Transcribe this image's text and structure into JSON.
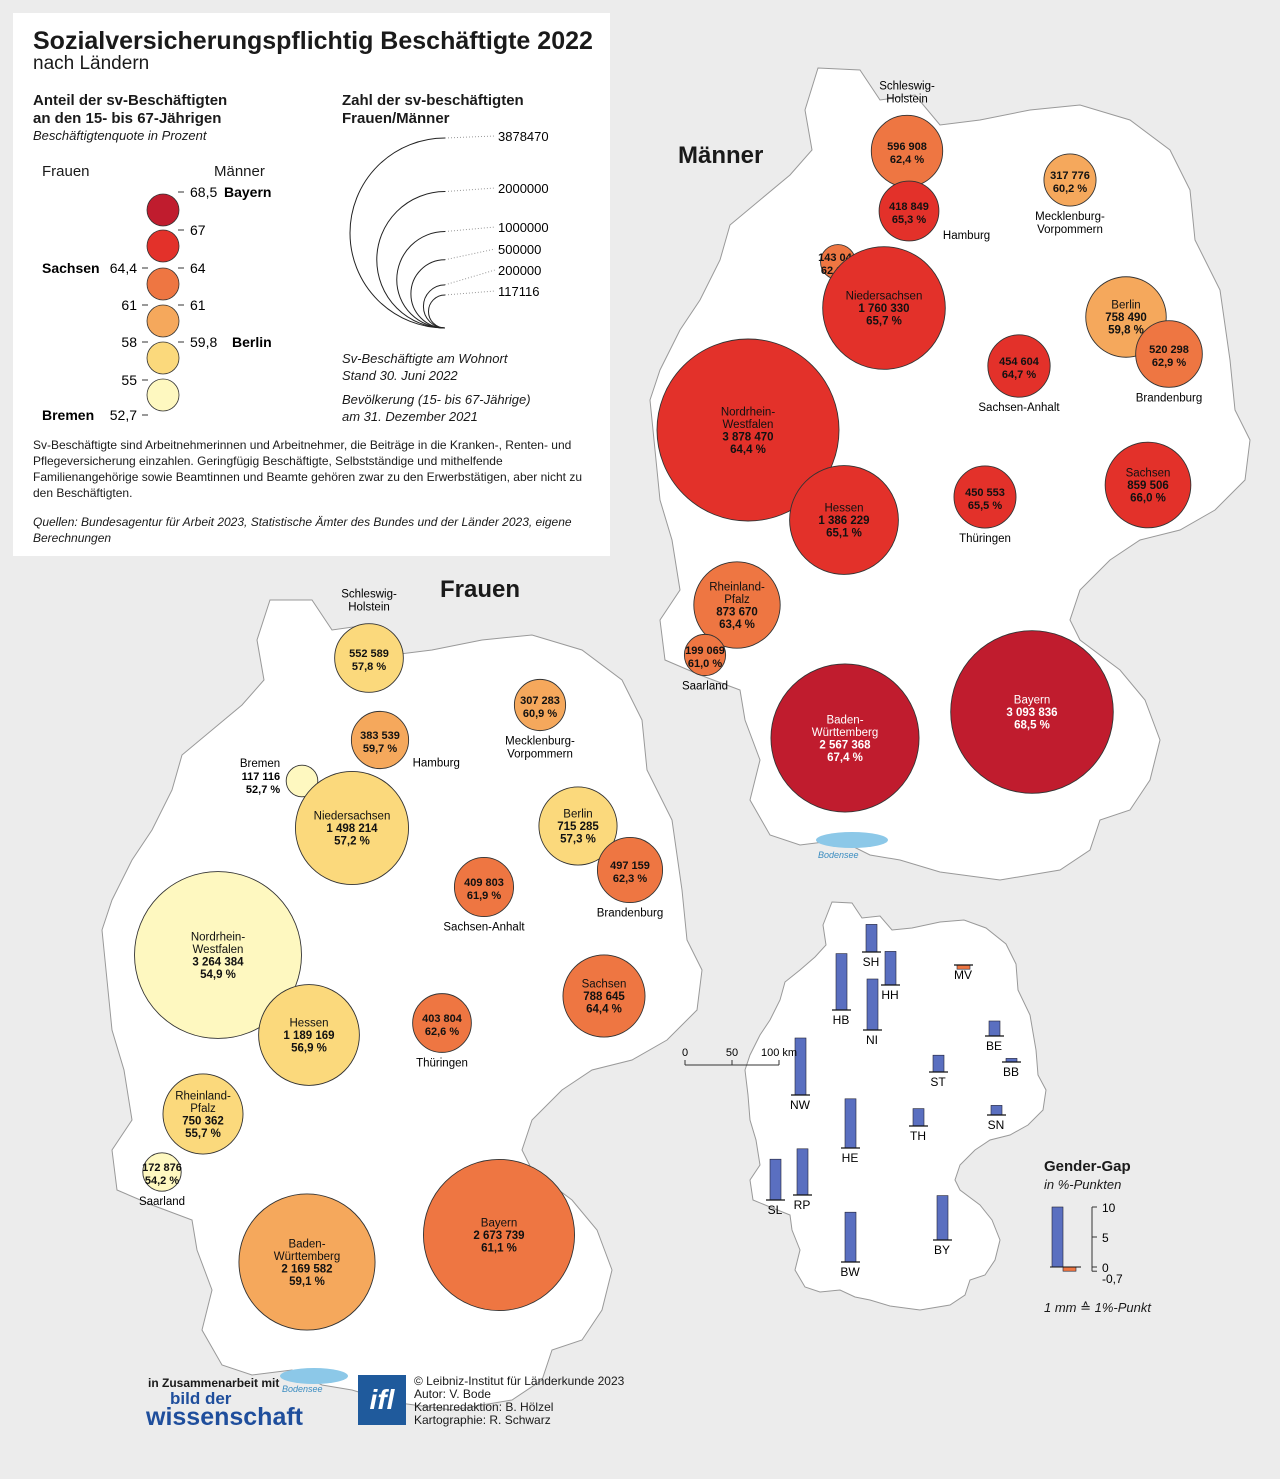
{
  "title": "Sozialversicherungspflichtig Beschäftigte 2022",
  "subtitle": "nach Ländern",
  "legend": {
    "share_title_1": "Anteil der sv-Beschäftigten",
    "share_title_2": "an den 15- bis 67-Jährigen",
    "share_subtitle": "Beschäftigtenquote in Prozent",
    "col_women": "Frauen",
    "col_men": "Männer",
    "classes": [
      {
        "color": "#c01c2e",
        "right": "68,5",
        "right_label": "Bayern",
        "left": "",
        "left_label": ""
      },
      {
        "color": "#e3312a",
        "right": "67",
        "right_label": "",
        "left": "",
        "left_label": ""
      },
      {
        "color": "#ee7642",
        "right": "64",
        "right_label": "",
        "left": "64,4",
        "left_label": "Sachsen"
      },
      {
        "color": "#f5a85c",
        "right": "61",
        "right_label": "",
        "left": "61",
        "left_label": ""
      },
      {
        "color": "#fbd97c",
        "right": "59,8",
        "right_label": "Berlin",
        "left": "58",
        "left_label": ""
      },
      {
        "color": "#fef8c0",
        "right": "",
        "right_label": "",
        "left": "55",
        "left_label": ""
      },
      {
        "color": "",
        "right": "",
        "right_label": "",
        "left": "52,7",
        "left_label": "Bremen"
      }
    ],
    "count_title_1": "Zahl der sv-beschäftigten",
    "count_title_2": "Frauen/Männer",
    "size_values": [
      "3878470",
      "2000000",
      "1000000",
      "500000",
      "200000",
      "117116"
    ],
    "size_numbers": [
      3878470,
      2000000,
      1000000,
      500000,
      200000,
      117116
    ],
    "note1_line1": "Sv-Beschäftigte am Wohnort",
    "note1_line2": "Stand 30. Juni 2022",
    "note2_line1": "Bevölkerung (15- bis 67-Jährige)",
    "note2_line2": "am 31. Dezember 2021",
    "explanation": "Sv-Beschäftigte sind Arbeitnehmerinnen und Arbeitnehmer, die Beiträge in die Kranken-, Renten- und Pflegeversicherung einzahlen. Geringfügig Beschäftigte, Selbstständige und mithelfende Familienangehörige sowie Beamtinnen und Beamte gehören zwar zu den Erwerbstätigen, aber nicht zu den Beschäftigten.",
    "sources": "Quellen: Bundesagentur für Arbeit 2023, Statistische Ämter des Bundes und der Länder 2023, eigene Berechnungen"
  },
  "maps": {
    "men_title": "Männer",
    "women_title": "Frauen",
    "lake": "Bodensee",
    "men": [
      {
        "name": [
          "Schleswig-",
          "Holstein"
        ],
        "value": "596 908",
        "pct": "62,4 %",
        "count": 596908,
        "color": "#ee7642"
      },
      {
        "name": [
          "Hamburg"
        ],
        "value": "418 849",
        "pct": "65,3 %",
        "count": 418849,
        "color": "#e3312a"
      },
      {
        "name": [
          "Mecklenburg-",
          "Vorpommern"
        ],
        "value": "317 776",
        "pct": "60,2 %",
        "count": 317776,
        "color": "#f5a85c"
      },
      {
        "name": [
          "Bremen"
        ],
        "value": "143 044",
        "pct": "62,1 %",
        "count": 143044,
        "color": "#ee7642"
      },
      {
        "name": [
          "Niedersachsen"
        ],
        "value": "1 760 330",
        "pct": "65,7 %",
        "count": 1760330,
        "color": "#e3312a"
      },
      {
        "name": [
          "Berlin"
        ],
        "value": "758 490",
        "pct": "59,8 %",
        "count": 758490,
        "color": "#f5a85c"
      },
      {
        "name": [
          "Brandenburg"
        ],
        "value": "520 298",
        "pct": "62,9 %",
        "count": 520298,
        "color": "#ee7642"
      },
      {
        "name": [
          "Sachsen-Anhalt"
        ],
        "value": "454 604",
        "pct": "64,7 %",
        "count": 454604,
        "color": "#e3312a"
      },
      {
        "name": [
          "Nordrhein-",
          "Westfalen"
        ],
        "value": "3 878 470",
        "pct": "64,4 %",
        "count": 3878470,
        "color": "#e3312a"
      },
      {
        "name": [
          "Hessen"
        ],
        "value": "1 386 229",
        "pct": "65,1 %",
        "count": 1386229,
        "color": "#e3312a"
      },
      {
        "name": [
          "Thüringen"
        ],
        "value": "450 553",
        "pct": "65,5 %",
        "count": 450553,
        "color": "#e3312a"
      },
      {
        "name": [
          "Sachsen"
        ],
        "value": "859 506",
        "pct": "66,0 %",
        "count": 859506,
        "color": "#e3312a"
      },
      {
        "name": [
          "Rheinland-",
          "Pfalz"
        ],
        "value": "873 670",
        "pct": "63,4 %",
        "count": 873670,
        "color": "#ee7642"
      },
      {
        "name": [
          "Saarland"
        ],
        "value": "199 069",
        "pct": "61,0 %",
        "count": 199069,
        "color": "#ee7642"
      },
      {
        "name": [
          "Baden-",
          "Württemberg"
        ],
        "value": "2 567 368",
        "pct": "67,4 %",
        "count": 2567368,
        "color": "#c01c2e"
      },
      {
        "name": [
          "Bayern"
        ],
        "value": "3 093 836",
        "pct": "68,5 %",
        "count": 3093836,
        "color": "#c01c2e"
      }
    ],
    "women": [
      {
        "name": [
          "Schleswig-",
          "Holstein"
        ],
        "value": "552 589",
        "pct": "57,8 %",
        "count": 552589,
        "color": "#fbd97c"
      },
      {
        "name": [
          "Hamburg"
        ],
        "value": "383 539",
        "pct": "59,7 %",
        "count": 383539,
        "color": "#f5a85c"
      },
      {
        "name": [
          "Mecklenburg-",
          "Vorpommern"
        ],
        "value": "307 283",
        "pct": "60,9 %",
        "count": 307283,
        "color": "#f5a85c"
      },
      {
        "name": [
          "Bremen"
        ],
        "value": "117 116",
        "pct": "52,7 %",
        "count": 117116,
        "color": "#fef8c0"
      },
      {
        "name": [
          "Niedersachsen"
        ],
        "value": "1 498 214",
        "pct": "57,2 %",
        "count": 1498214,
        "color": "#fbd97c"
      },
      {
        "name": [
          "Berlin"
        ],
        "value": "715 285",
        "pct": "57,3 %",
        "count": 715285,
        "color": "#fbd97c"
      },
      {
        "name": [
          "Brandenburg"
        ],
        "value": "497 159",
        "pct": "62,3 %",
        "count": 497159,
        "color": "#ee7642"
      },
      {
        "name": [
          "Sachsen-Anhalt"
        ],
        "value": "409 803",
        "pct": "61,9 %",
        "count": 409803,
        "color": "#ee7642"
      },
      {
        "name": [
          "Nordrhein-",
          "Westfalen"
        ],
        "value": "3 264 384",
        "pct": "54,9 %",
        "count": 3264384,
        "color": "#fef8c0"
      },
      {
        "name": [
          "Hessen"
        ],
        "value": "1 189 169",
        "pct": "56,9 %",
        "count": 1189169,
        "color": "#fbd97c"
      },
      {
        "name": [
          "Thüringen"
        ],
        "value": "403 804",
        "pct": "62,6 %",
        "count": 403804,
        "color": "#ee7642"
      },
      {
        "name": [
          "Sachsen"
        ],
        "value": "788 645",
        "pct": "64,4 %",
        "count": 788645,
        "color": "#ee7642"
      },
      {
        "name": [
          "Rheinland-",
          "Pfalz"
        ],
        "value": "750 362",
        "pct": "55,7 %",
        "count": 750362,
        "color": "#fbd97c"
      },
      {
        "name": [
          "Saarland"
        ],
        "value": "172 876",
        "pct": "54,2 %",
        "count": 172876,
        "color": "#fef8c0"
      },
      {
        "name": [
          "Baden-",
          "Württemberg"
        ],
        "value": "2 169 582",
        "pct": "59,1 %",
        "count": 2169582,
        "color": "#f5a85c"
      },
      {
        "name": [
          "Bayern"
        ],
        "value": "2 673 739",
        "pct": "61,1 %",
        "count": 2673739,
        "color": "#ee7642"
      }
    ]
  },
  "gap": {
    "title": "Gender-Gap",
    "subtitle": "in %-Punkten",
    "scale_labels": [
      "10",
      "5",
      "0",
      "-0,7"
    ],
    "scale_note": "1 mm ≙ 1%-Punkt",
    "bar_color": "#5a6fc0",
    "neg_color": "#ee7642",
    "states": [
      {
        "code": "SH",
        "gap": 4.6
      },
      {
        "code": "HH",
        "gap": 5.6
      },
      {
        "code": "MV",
        "gap": -0.7
      },
      {
        "code": "HB",
        "gap": 9.4
      },
      {
        "code": "NI",
        "gap": 8.5
      },
      {
        "code": "BE",
        "gap": 2.5
      },
      {
        "code": "BB",
        "gap": 0.6
      },
      {
        "code": "ST",
        "gap": 2.8
      },
      {
        "code": "NW",
        "gap": 9.5
      },
      {
        "code": "HE",
        "gap": 8.2
      },
      {
        "code": "TH",
        "gap": 2.9
      },
      {
        "code": "SN",
        "gap": 1.6
      },
      {
        "code": "SL",
        "gap": 6.8
      },
      {
        "code": "RP",
        "gap": 7.7
      },
      {
        "code": "BW",
        "gap": 8.3
      },
      {
        "code": "BY",
        "gap": 7.4
      }
    ]
  },
  "scalebar": {
    "labels": [
      "0",
      "50",
      "100 km"
    ]
  },
  "credits": {
    "partner_label": "in Zusammenarbeit mit",
    "partner_line1": "bild der",
    "partner_line2": "wissenschaft",
    "ifl_logo": "ifl",
    "lines": [
      "© Leibniz-Institut für Länderkunde 2023",
      "Autor: V. Bode",
      "Kartenredaktion: B. Hölzel",
      "Kartographie: R. Schwarz"
    ]
  }
}
